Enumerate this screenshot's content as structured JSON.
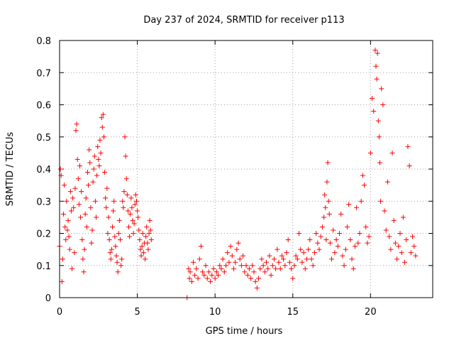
{
  "chart_data": {
    "type": "scatter",
    "title": "Day 237 of 2024, SRMTID for receiver p113",
    "xlabel": "GPS time / hours",
    "ylabel": "SRMTID / TECUs",
    "xlim": [
      0,
      24.0
    ],
    "ylim": [
      0,
      0.8
    ],
    "xticks": [
      0,
      5,
      10,
      15,
      20
    ],
    "xtick_labels": [
      "0",
      "5",
      "10",
      "15",
      "20"
    ],
    "yticks": [
      0,
      0.1,
      0.2,
      0.3,
      0.4,
      0.5,
      0.6,
      0.7,
      0.8
    ],
    "ytick_labels": [
      "0",
      "0.1",
      "0.2",
      "0.3",
      "0.4",
      "0.5",
      "0.6",
      "0.7",
      "0.8"
    ],
    "grid": true,
    "marker": "plus",
    "color": "#ff0000",
    "series": [
      {
        "name": "SRMTID",
        "points": [
          [
            0.0,
            0.16
          ],
          [
            0.05,
            0.4
          ],
          [
            0.1,
            0.38
          ],
          [
            0.15,
            0.05
          ],
          [
            0.2,
            0.12
          ],
          [
            0.25,
            0.26
          ],
          [
            0.3,
            0.35
          ],
          [
            0.35,
            0.22
          ],
          [
            0.4,
            0.18
          ],
          [
            0.45,
            0.3
          ],
          [
            0.5,
            0.21
          ],
          [
            0.55,
            0.24
          ],
          [
            0.6,
            0.19
          ],
          [
            0.65,
            0.15
          ],
          [
            0.7,
            0.33
          ],
          [
            0.75,
            0.27
          ],
          [
            0.8,
            0.09
          ],
          [
            0.85,
            0.31
          ],
          [
            0.9,
            0.28
          ],
          [
            0.95,
            0.14
          ],
          [
            1.0,
            0.34
          ],
          [
            1.05,
            0.52
          ],
          [
            1.1,
            0.54
          ],
          [
            1.15,
            0.43
          ],
          [
            1.2,
            0.37
          ],
          [
            1.25,
            0.29
          ],
          [
            1.3,
            0.41
          ],
          [
            1.35,
            0.25
          ],
          [
            1.4,
            0.33
          ],
          [
            1.45,
            0.18
          ],
          [
            1.5,
            0.12
          ],
          [
            1.55,
            0.08
          ],
          [
            1.6,
            0.15
          ],
          [
            1.65,
            0.26
          ],
          [
            1.7,
            0.31
          ],
          [
            1.75,
            0.22
          ],
          [
            1.8,
            0.39
          ],
          [
            1.85,
            0.35
          ],
          [
            1.9,
            0.46
          ],
          [
            1.95,
            0.42
          ],
          [
            2.0,
            0.28
          ],
          [
            2.05,
            0.17
          ],
          [
            2.1,
            0.21
          ],
          [
            2.15,
            0.36
          ],
          [
            2.2,
            0.4
          ],
          [
            2.25,
            0.44
          ],
          [
            2.3,
            0.3
          ],
          [
            2.35,
            0.25
          ],
          [
            2.4,
            0.38
          ],
          [
            2.45,
            0.47
          ],
          [
            2.5,
            0.43
          ],
          [
            2.55,
            0.41
          ],
          [
            2.6,
            0.49
          ],
          [
            2.65,
            0.45
          ],
          [
            2.7,
            0.56
          ],
          [
            2.75,
            0.53
          ],
          [
            2.8,
            0.57
          ],
          [
            2.85,
            0.5
          ],
          [
            2.9,
            0.39
          ],
          [
            2.95,
            0.31
          ],
          [
            3.0,
            0.28
          ],
          [
            3.05,
            0.34
          ],
          [
            3.1,
            0.2
          ],
          [
            3.15,
            0.25
          ],
          [
            3.2,
            0.18
          ],
          [
            3.25,
            0.14
          ],
          [
            3.3,
            0.12
          ],
          [
            3.35,
            0.15
          ],
          [
            3.4,
            0.22
          ],
          [
            3.45,
            0.27
          ],
          [
            3.5,
            0.3
          ],
          [
            3.55,
            0.19
          ],
          [
            3.6,
            0.16
          ],
          [
            3.65,
            0.13
          ],
          [
            3.7,
            0.11
          ],
          [
            3.75,
            0.08
          ],
          [
            3.8,
            0.2
          ],
          [
            3.85,
            0.24
          ],
          [
            3.9,
            0.18
          ],
          [
            3.95,
            0.1
          ],
          [
            4.0,
            0.12
          ],
          [
            4.05,
            0.3
          ],
          [
            4.1,
            0.28
          ],
          [
            4.15,
            0.33
          ],
          [
            4.2,
            0.5
          ],
          [
            4.25,
            0.44
          ],
          [
            4.3,
            0.37
          ],
          [
            4.35,
            0.32
          ],
          [
            4.4,
            0.27
          ],
          [
            4.45,
            0.22
          ],
          [
            4.5,
            0.19
          ],
          [
            4.55,
            0.26
          ],
          [
            4.6,
            0.31
          ],
          [
            4.65,
            0.28
          ],
          [
            4.7,
            0.24
          ],
          [
            4.75,
            0.2
          ],
          [
            4.8,
            0.23
          ],
          [
            4.85,
            0.29
          ],
          [
            4.9,
            0.32
          ],
          [
            4.95,
            0.3
          ],
          [
            5.0,
            0.27
          ],
          [
            5.05,
            0.25
          ],
          [
            5.1,
            0.21
          ],
          [
            5.15,
            0.18
          ],
          [
            5.2,
            0.15
          ],
          [
            5.25,
            0.13
          ],
          [
            5.3,
            0.16
          ],
          [
            5.35,
            0.2
          ],
          [
            5.4,
            0.14
          ],
          [
            5.45,
            0.17
          ],
          [
            5.5,
            0.12
          ],
          [
            5.55,
            0.19
          ],
          [
            5.6,
            0.22
          ],
          [
            5.65,
            0.17
          ],
          [
            5.7,
            0.15
          ],
          [
            5.75,
            0.2
          ],
          [
            5.8,
            0.24
          ],
          [
            5.85,
            0.21
          ],
          [
            5.9,
            0.18
          ],
          [
            8.2,
            0.0
          ],
          [
            8.3,
            0.09
          ],
          [
            8.35,
            0.06
          ],
          [
            8.4,
            0.08
          ],
          [
            8.5,
            0.05
          ],
          [
            8.6,
            0.11
          ],
          [
            8.7,
            0.07
          ],
          [
            8.8,
            0.09
          ],
          [
            8.9,
            0.06
          ],
          [
            9.0,
            0.12
          ],
          [
            9.1,
            0.16
          ],
          [
            9.2,
            0.08
          ],
          [
            9.3,
            0.07
          ],
          [
            9.4,
            0.1
          ],
          [
            9.5,
            0.06
          ],
          [
            9.6,
            0.08
          ],
          [
            9.7,
            0.05
          ],
          [
            9.8,
            0.07
          ],
          [
            9.9,
            0.09
          ],
          [
            10.0,
            0.06
          ],
          [
            10.1,
            0.08
          ],
          [
            10.2,
            0.07
          ],
          [
            10.3,
            0.1
          ],
          [
            10.4,
            0.09
          ],
          [
            10.5,
            0.12
          ],
          [
            10.6,
            0.08
          ],
          [
            10.7,
            0.1
          ],
          [
            10.8,
            0.14
          ],
          [
            10.9,
            0.11
          ],
          [
            11.0,
            0.16
          ],
          [
            11.1,
            0.13
          ],
          [
            11.2,
            0.09
          ],
          [
            11.3,
            0.11
          ],
          [
            11.4,
            0.15
          ],
          [
            11.5,
            0.17
          ],
          [
            11.6,
            0.12
          ],
          [
            11.7,
            0.1
          ],
          [
            11.8,
            0.13
          ],
          [
            11.9,
            0.08
          ],
          [
            12.0,
            0.1
          ],
          [
            12.1,
            0.07
          ],
          [
            12.2,
            0.09
          ],
          [
            12.3,
            0.06
          ],
          [
            12.4,
            0.1
          ],
          [
            12.5,
            0.08
          ],
          [
            12.6,
            0.05
          ],
          [
            12.7,
            0.03
          ],
          [
            12.8,
            0.06
          ],
          [
            12.9,
            0.09
          ],
          [
            13.0,
            0.12
          ],
          [
            13.1,
            0.1
          ],
          [
            13.2,
            0.08
          ],
          [
            13.3,
            0.11
          ],
          [
            13.4,
            0.09
          ],
          [
            13.5,
            0.13
          ],
          [
            13.6,
            0.07
          ],
          [
            13.7,
            0.1
          ],
          [
            13.8,
            0.12
          ],
          [
            13.9,
            0.09
          ],
          [
            14.0,
            0.15
          ],
          [
            14.1,
            0.11
          ],
          [
            14.2,
            0.09
          ],
          [
            14.3,
            0.13
          ],
          [
            14.4,
            0.12
          ],
          [
            14.5,
            0.1
          ],
          [
            14.6,
            0.14
          ],
          [
            14.7,
            0.18
          ],
          [
            14.8,
            0.11
          ],
          [
            14.9,
            0.09
          ],
          [
            15.0,
            0.06
          ],
          [
            15.1,
            0.1
          ],
          [
            15.2,
            0.13
          ],
          [
            15.3,
            0.12
          ],
          [
            15.4,
            0.2
          ],
          [
            15.5,
            0.15
          ],
          [
            15.6,
            0.11
          ],
          [
            15.7,
            0.14
          ],
          [
            15.8,
            0.09
          ],
          [
            15.9,
            0.12
          ],
          [
            16.0,
            0.15
          ],
          [
            16.1,
            0.18
          ],
          [
            16.2,
            0.12
          ],
          [
            16.3,
            0.1
          ],
          [
            16.4,
            0.14
          ],
          [
            16.5,
            0.2
          ],
          [
            16.6,
            0.17
          ],
          [
            16.7,
            0.15
          ],
          [
            16.8,
            0.19
          ],
          [
            16.9,
            0.22
          ],
          [
            17.0,
            0.25
          ],
          [
            17.05,
            0.32
          ],
          [
            17.1,
            0.28
          ],
          [
            17.15,
            0.18
          ],
          [
            17.2,
            0.36
          ],
          [
            17.25,
            0.42
          ],
          [
            17.3,
            0.3
          ],
          [
            17.35,
            0.26
          ],
          [
            17.4,
            0.17
          ],
          [
            17.5,
            0.12
          ],
          [
            17.6,
            0.21
          ],
          [
            17.7,
            0.14
          ],
          [
            17.8,
            0.18
          ],
          [
            17.9,
            0.16
          ],
          [
            18.0,
            0.2
          ],
          [
            18.1,
            0.26
          ],
          [
            18.2,
            0.13
          ],
          [
            18.3,
            0.1
          ],
          [
            18.4,
            0.15
          ],
          [
            18.5,
            0.22
          ],
          [
            18.6,
            0.29
          ],
          [
            18.7,
            0.18
          ],
          [
            18.8,
            0.12
          ],
          [
            18.9,
            0.09
          ],
          [
            19.0,
            0.16
          ],
          [
            19.1,
            0.28
          ],
          [
            19.2,
            0.17
          ],
          [
            19.3,
            0.2
          ],
          [
            19.4,
            0.3
          ],
          [
            19.5,
            0.38
          ],
          [
            19.6,
            0.35
          ],
          [
            19.7,
            0.22
          ],
          [
            19.8,
            0.17
          ],
          [
            19.9,
            0.19
          ],
          [
            20.0,
            0.45
          ],
          [
            20.1,
            0.62
          ],
          [
            20.2,
            0.58
          ],
          [
            20.3,
            0.77
          ],
          [
            20.35,
            0.72
          ],
          [
            20.4,
            0.68
          ],
          [
            20.45,
            0.76
          ],
          [
            20.5,
            0.55
          ],
          [
            20.55,
            0.5
          ],
          [
            20.6,
            0.42
          ],
          [
            20.65,
            0.3
          ],
          [
            20.7,
            0.65
          ],
          [
            20.8,
            0.6
          ],
          [
            20.9,
            0.27
          ],
          [
            21.0,
            0.21
          ],
          [
            21.1,
            0.36
          ],
          [
            21.2,
            0.19
          ],
          [
            21.3,
            0.15
          ],
          [
            21.4,
            0.45
          ],
          [
            21.5,
            0.24
          ],
          [
            21.6,
            0.17
          ],
          [
            21.7,
            0.12
          ],
          [
            21.8,
            0.16
          ],
          [
            21.9,
            0.2
          ],
          [
            22.0,
            0.14
          ],
          [
            22.1,
            0.25
          ],
          [
            22.2,
            0.11
          ],
          [
            22.3,
            0.18
          ],
          [
            22.4,
            0.47
          ],
          [
            22.5,
            0.41
          ],
          [
            22.6,
            0.14
          ],
          [
            22.7,
            0.19
          ],
          [
            22.8,
            0.16
          ],
          [
            22.9,
            0.13
          ]
        ]
      }
    ]
  }
}
